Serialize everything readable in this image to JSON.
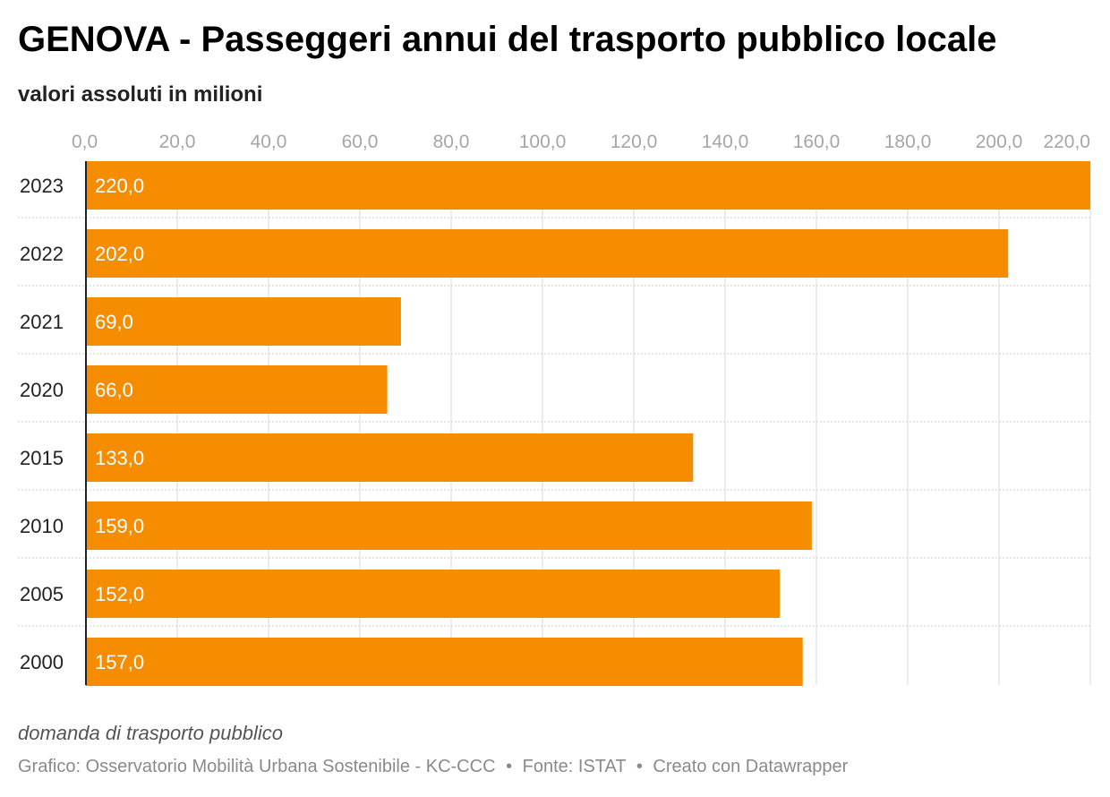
{
  "header": {
    "title": "GENOVA - Passeggeri annui del trasporto pubblico locale",
    "subtitle": "valori assoluti in milioni"
  },
  "chart_data": {
    "type": "bar",
    "orientation": "horizontal",
    "title": "GENOVA - Passeggeri annui del trasporto pubblico locale",
    "subtitle": "valori assoluti in milioni",
    "categories": [
      "2023",
      "2022",
      "2021",
      "2020",
      "2015",
      "2010",
      "2005",
      "2000"
    ],
    "values": [
      220.0,
      202.0,
      69.0,
      66.0,
      133.0,
      159.0,
      152.0,
      157.0
    ],
    "value_labels": [
      "220,0",
      "202,0",
      "69,0",
      "66,0",
      "133,0",
      "159,0",
      "152,0",
      "157,0"
    ],
    "xlim": [
      0,
      220
    ],
    "xticks": [
      0,
      20,
      40,
      60,
      80,
      100,
      120,
      140,
      160,
      180,
      200,
      220
    ],
    "xtick_labels": [
      "0,0",
      "20,0",
      "40,0",
      "60,0",
      "80,0",
      "100,0",
      "120,0",
      "140,0",
      "160,0",
      "180,0",
      "200,0",
      "220,0"
    ],
    "grid": true,
    "xlabel": "",
    "ylabel": "",
    "bar_color": "#f68c00",
    "label_color": "#ffffff"
  },
  "notes": "domanda di trasporto pubblico",
  "footer": {
    "credit": "Grafico: Osservatorio Mobilità Urbana Sostenibile - KC-CCC",
    "source": "Fonte: ISTAT",
    "tool": "Creato con Datawrapper",
    "separator": "•"
  }
}
